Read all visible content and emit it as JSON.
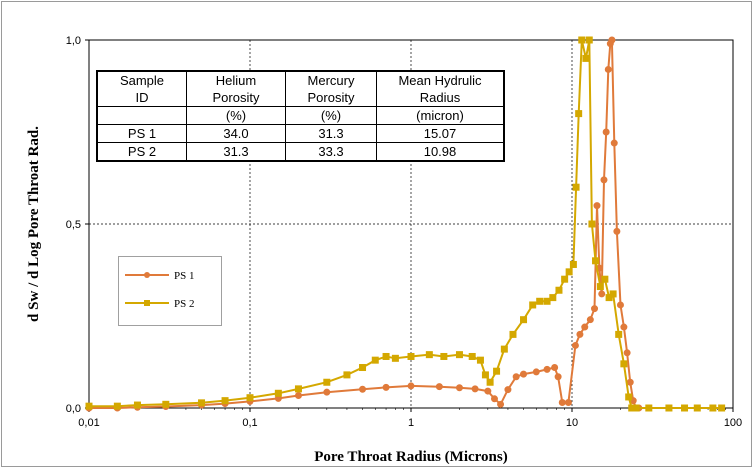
{
  "chart_data": {
    "type": "line",
    "xscale": "log",
    "xlim": [
      0.01,
      100
    ],
    "ylim": [
      0,
      1.0
    ],
    "xlabel": "Pore Throat Radius (Microns)",
    "ylabel": "d Sw / d Log Pore Throat Rad.",
    "xticks": [
      "0,01",
      "0,1",
      "1",
      "10",
      "100"
    ],
    "yticks": [
      "0,0",
      "0,5",
      "1,0"
    ],
    "grid": "dashed major",
    "legend_position": "left-middle",
    "series": [
      {
        "name": "PS 1",
        "color": "#E07A3A",
        "marker": "circle",
        "points": [
          [
            0.01,
            0.0
          ],
          [
            0.015,
            0.0
          ],
          [
            0.02,
            0.002
          ],
          [
            0.03,
            0.004
          ],
          [
            0.05,
            0.008
          ],
          [
            0.07,
            0.012
          ],
          [
            0.1,
            0.018
          ],
          [
            0.15,
            0.026
          ],
          [
            0.2,
            0.034
          ],
          [
            0.3,
            0.043
          ],
          [
            0.5,
            0.051
          ],
          [
            0.7,
            0.056
          ],
          [
            1.0,
            0.06
          ],
          [
            1.5,
            0.058
          ],
          [
            2.0,
            0.055
          ],
          [
            2.5,
            0.052
          ],
          [
            3.0,
            0.046
          ],
          [
            3.3,
            0.025
          ],
          [
            3.6,
            0.01
          ],
          [
            4.0,
            0.05
          ],
          [
            4.5,
            0.085
          ],
          [
            5.0,
            0.092
          ],
          [
            6.0,
            0.098
          ],
          [
            7.0,
            0.105
          ],
          [
            7.8,
            0.11
          ],
          [
            8.2,
            0.085
          ],
          [
            8.7,
            0.015
          ],
          [
            9.5,
            0.015
          ],
          [
            10.5,
            0.17
          ],
          [
            11.2,
            0.2
          ],
          [
            12.0,
            0.22
          ],
          [
            13.0,
            0.24
          ],
          [
            13.8,
            0.27
          ],
          [
            14.3,
            0.55
          ],
          [
            14.8,
            0.38
          ],
          [
            15.3,
            0.31
          ],
          [
            15.8,
            0.62
          ],
          [
            16.3,
            0.75
          ],
          [
            16.8,
            0.92
          ],
          [
            17.3,
            0.99
          ],
          [
            17.7,
            1.0
          ],
          [
            18.3,
            0.72
          ],
          [
            19.0,
            0.48
          ],
          [
            20.0,
            0.28
          ],
          [
            21.0,
            0.22
          ],
          [
            22.0,
            0.15
          ],
          [
            23.0,
            0.07
          ],
          [
            24.0,
            0.02
          ],
          [
            25.0,
            0.0
          ],
          [
            26.0,
            0.0
          ]
        ]
      },
      {
        "name": "PS 2",
        "color": "#D4A800",
        "marker": "square",
        "points": [
          [
            0.01,
            0.005
          ],
          [
            0.015,
            0.005
          ],
          [
            0.02,
            0.008
          ],
          [
            0.03,
            0.01
          ],
          [
            0.05,
            0.014
          ],
          [
            0.07,
            0.02
          ],
          [
            0.1,
            0.028
          ],
          [
            0.15,
            0.04
          ],
          [
            0.2,
            0.052
          ],
          [
            0.3,
            0.07
          ],
          [
            0.4,
            0.09
          ],
          [
            0.5,
            0.11
          ],
          [
            0.6,
            0.13
          ],
          [
            0.7,
            0.14
          ],
          [
            0.8,
            0.135
          ],
          [
            1.0,
            0.14
          ],
          [
            1.3,
            0.145
          ],
          [
            1.6,
            0.14
          ],
          [
            2.0,
            0.145
          ],
          [
            2.4,
            0.14
          ],
          [
            2.7,
            0.13
          ],
          [
            2.9,
            0.09
          ],
          [
            3.1,
            0.07
          ],
          [
            3.4,
            0.1
          ],
          [
            3.8,
            0.16
          ],
          [
            4.3,
            0.2
          ],
          [
            5.0,
            0.24
          ],
          [
            5.7,
            0.28
          ],
          [
            6.3,
            0.29
          ],
          [
            7.0,
            0.29
          ],
          [
            7.6,
            0.3
          ],
          [
            8.3,
            0.32
          ],
          [
            9.0,
            0.35
          ],
          [
            9.6,
            0.37
          ],
          [
            10.2,
            0.39
          ],
          [
            10.6,
            0.6
          ],
          [
            11.0,
            0.8
          ],
          [
            11.5,
            1.0
          ],
          [
            12.2,
            0.95
          ],
          [
            12.8,
            1.0
          ],
          [
            13.3,
            0.5
          ],
          [
            14.0,
            0.4
          ],
          [
            15.0,
            0.33
          ],
          [
            16.0,
            0.35
          ],
          [
            17.0,
            0.3
          ],
          [
            18.0,
            0.31
          ],
          [
            19.5,
            0.2
          ],
          [
            21.0,
            0.12
          ],
          [
            22.5,
            0.03
          ],
          [
            23.5,
            0.0
          ],
          [
            25.0,
            0.0
          ],
          [
            30.0,
            0.0
          ],
          [
            40.0,
            0.0
          ],
          [
            50.0,
            0.0
          ],
          [
            60.0,
            0.0
          ],
          [
            75.0,
            0.0
          ],
          [
            85.0,
            0.0
          ]
        ]
      }
    ],
    "table": {
      "headers": [
        [
          "Sample",
          "Helium",
          "Mercury",
          "Mean Hydrulic"
        ],
        [
          "ID",
          "Porosity",
          "Porosity",
          "Radius"
        ]
      ],
      "units": [
        "",
        "(%)",
        "(%)",
        "(micron)"
      ],
      "rows": [
        [
          "PS 1",
          "34.0",
          "31.3",
          "15.07"
        ],
        [
          "PS 2",
          "31.3",
          "33.3",
          "10.98"
        ]
      ]
    }
  }
}
